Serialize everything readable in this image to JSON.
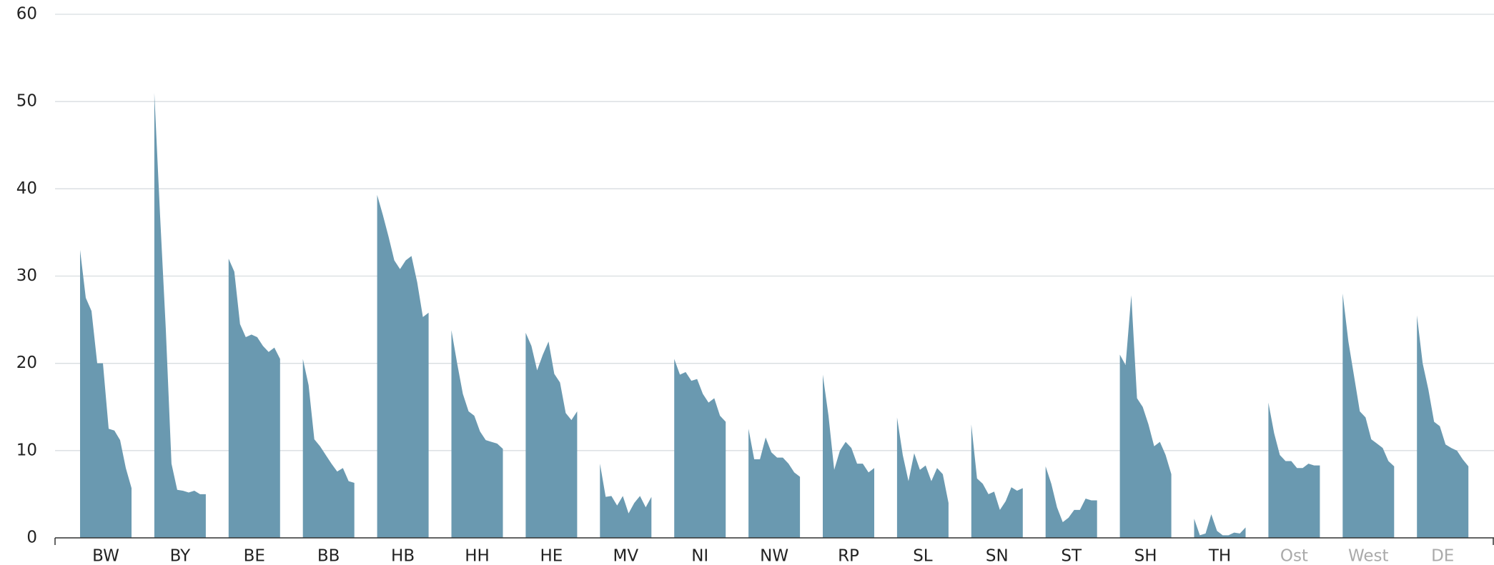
{
  "chart_data": {
    "type": "area",
    "color": "#6a99b0",
    "grid": true,
    "ylim": [
      0,
      60
    ],
    "yticks": [
      0,
      10,
      20,
      30,
      40,
      50,
      60
    ],
    "series": [
      {
        "name": "BW",
        "values": [
          33,
          27.5,
          26,
          20,
          20,
          12.5,
          12.3,
          11.2,
          8,
          5.7
        ]
      },
      {
        "name": "BY",
        "values": [
          51,
          37,
          24,
          8.5,
          5.5,
          5.4,
          5.2,
          5.4,
          5,
          5
        ]
      },
      {
        "name": "BE",
        "values": [
          32,
          30.5,
          24.5,
          23,
          23.3,
          23,
          22,
          21.3,
          21.8,
          20.5
        ]
      },
      {
        "name": "BB",
        "values": [
          20.5,
          17.5,
          11.3,
          10.5,
          9.5,
          8.5,
          7.6,
          8,
          6.5,
          6.3
        ]
      },
      {
        "name": "HB",
        "values": [
          39.3,
          37,
          34.5,
          31.8,
          30.8,
          31.8,
          32.3,
          29.3,
          25.3,
          25.8
        ]
      },
      {
        "name": "HH",
        "values": [
          23.8,
          20,
          16.5,
          14.5,
          14,
          12.2,
          11.2,
          11,
          10.8,
          10.2
        ]
      },
      {
        "name": "HE",
        "values": [
          23.5,
          22,
          19.2,
          21,
          22.5,
          18.8,
          17.8,
          14.3,
          13.5,
          14.5
        ]
      },
      {
        "name": "MV",
        "values": [
          8.5,
          4.7,
          4.8,
          3.7,
          4.8,
          2.8,
          4,
          4.8,
          3.5,
          4.7
        ]
      },
      {
        "name": "NI",
        "values": [
          20.5,
          18.7,
          19,
          18,
          18.2,
          16.5,
          15.5,
          16,
          14,
          13.3
        ]
      },
      {
        "name": "NW",
        "values": [
          12.5,
          9,
          9,
          11.5,
          9.8,
          9.2,
          9.2,
          8.5,
          7.5,
          7
        ]
      },
      {
        "name": "RP",
        "values": [
          18.7,
          14,
          7.8,
          10,
          11,
          10.3,
          8.5,
          8.5,
          7.5,
          8
        ]
      },
      {
        "name": "SL",
        "values": [
          13.8,
          9.5,
          6.5,
          9.7,
          7.8,
          8.3,
          6.5,
          8,
          7.3,
          4
        ]
      },
      {
        "name": "SN",
        "values": [
          13,
          6.8,
          6.2,
          5,
          5.3,
          3.2,
          4.2,
          5.8,
          5.4,
          5.7
        ]
      },
      {
        "name": "ST",
        "values": [
          8.2,
          6.2,
          3.5,
          1.8,
          2.3,
          3.2,
          3.2,
          4.5,
          4.3,
          4.3
        ]
      },
      {
        "name": "SH",
        "values": [
          21,
          19.8,
          27.8,
          16,
          15,
          13,
          10.5,
          11,
          9.5,
          7.3
        ]
      },
      {
        "name": "TH",
        "values": [
          2.2,
          0.3,
          0.5,
          2.7,
          0.8,
          0.3,
          0.3,
          0.6,
          0.5,
          1.2
        ]
      },
      {
        "name": "Ost",
        "label_color": "#aaaaaa",
        "values": [
          15.5,
          12,
          9.5,
          8.8,
          8.8,
          8,
          8,
          8.5,
          8.3,
          8.3
        ]
      },
      {
        "name": "West",
        "label_color": "#aaaaaa",
        "values": [
          28,
          22.5,
          18.5,
          14.5,
          13.8,
          11.3,
          10.8,
          10.3,
          8.8,
          8.2
        ]
      },
      {
        "name": "DE",
        "label_color": "#aaaaaa",
        "values": [
          25.5,
          20,
          17,
          13.3,
          12.8,
          10.7,
          10.3,
          10,
          9,
          8.2
        ]
      }
    ]
  }
}
